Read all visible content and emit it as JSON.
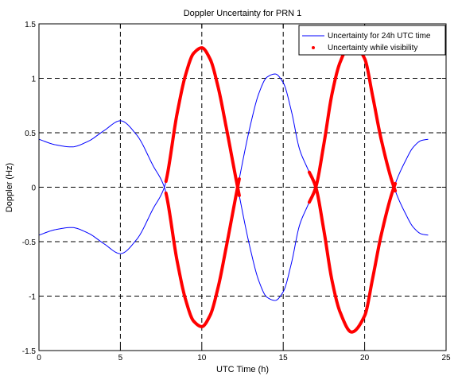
{
  "chart_data": {
    "type": "line",
    "title": "Doppler Uncertainty for PRN 1",
    "xlabel": "UTC Time (h)",
    "ylabel": "Doppler (Hz)",
    "xlim": [
      0,
      25
    ],
    "ylim": [
      -1.5,
      1.5
    ],
    "xticks": [
      0,
      5,
      10,
      15,
      20,
      25
    ],
    "yticks": [
      -1.5,
      -1,
      -0.5,
      0,
      0.5,
      1,
      1.5
    ],
    "xtick_labels": [
      "0",
      "5",
      "10",
      "15",
      "20",
      "25"
    ],
    "ytick_labels": [
      "-1.5",
      "-1",
      "-0.5",
      "0",
      "0.5",
      "1",
      "1.5"
    ],
    "grid": true,
    "grid_style": "dashed",
    "legend_position": "top-right",
    "colors": {
      "uncertainty": "#0000ff",
      "visibility": "#ff0000"
    },
    "series": [
      {
        "name": "Uncertainty for 24h UTC time",
        "style": "line",
        "color": "#0000ff",
        "x": [
          0,
          1,
          2,
          3,
          4,
          5,
          6,
          7,
          7.7,
          8.5,
          9,
          9.5,
          10,
          10.5,
          11,
          11.5,
          12.2,
          13,
          13.5,
          14,
          14.5,
          15,
          15.5,
          16,
          16.5,
          17,
          17.5,
          18,
          18.5,
          19.2,
          20,
          20.5,
          21,
          21.8,
          22.5,
          23,
          23.5,
          23.9
        ],
        "upper": [
          0.44,
          0.39,
          0.37,
          0.42,
          0.52,
          0.61,
          0.48,
          0.2,
          0.0,
          -0.69,
          -1.03,
          -1.23,
          -1.28,
          -1.18,
          -0.92,
          -0.55,
          0.0,
          0.58,
          0.86,
          1.01,
          1.04,
          0.96,
          0.7,
          0.35,
          0.17,
          0.0,
          -0.4,
          -0.86,
          -1.15,
          -1.33,
          -1.18,
          -0.83,
          -0.45,
          0.0,
          0.24,
          0.37,
          0.43,
          0.44
        ]
      },
      {
        "name": "Uncertainty while visibility",
        "style": "points",
        "color": "#ff0000",
        "segments": [
          [
            7.8,
            12.3
          ],
          [
            16.6,
            21.9
          ]
        ]
      }
    ]
  }
}
